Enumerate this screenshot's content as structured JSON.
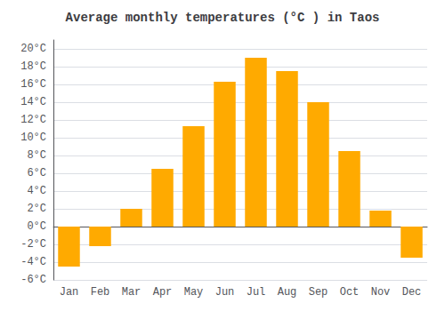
{
  "chart_data": {
    "type": "bar",
    "title": "Average monthly temperatures (°C ) in Taos",
    "categories": [
      "Jan",
      "Feb",
      "Mar",
      "Apr",
      "May",
      "Jun",
      "Jul",
      "Aug",
      "Sep",
      "Oct",
      "Nov",
      "Dec"
    ],
    "values": [
      -4.5,
      -2.2,
      2.0,
      6.5,
      11.3,
      16.3,
      19.0,
      17.5,
      14.0,
      8.5,
      1.8,
      -3.5
    ],
    "color": "#FFAA00",
    "ylim": [
      -6,
      21
    ],
    "yticks": [
      {
        "value": -6,
        "label": "-6°C"
      },
      {
        "value": -4,
        "label": "-4°C"
      },
      {
        "value": -2,
        "label": "-2°C"
      },
      {
        "value": 0,
        "label": "0°C"
      },
      {
        "value": 2,
        "label": "2°C"
      },
      {
        "value": 4,
        "label": "4°C"
      },
      {
        "value": 6,
        "label": "6°C"
      },
      {
        "value": 8,
        "label": "8°C"
      },
      {
        "value": 10,
        "label": "10°C"
      },
      {
        "value": 12,
        "label": "12°C"
      },
      {
        "value": 14,
        "label": "14°C"
      },
      {
        "value": 16,
        "label": "16°C"
      },
      {
        "value": 18,
        "label": "18°C"
      },
      {
        "value": 20,
        "label": "20°C"
      }
    ],
    "grid": true
  }
}
